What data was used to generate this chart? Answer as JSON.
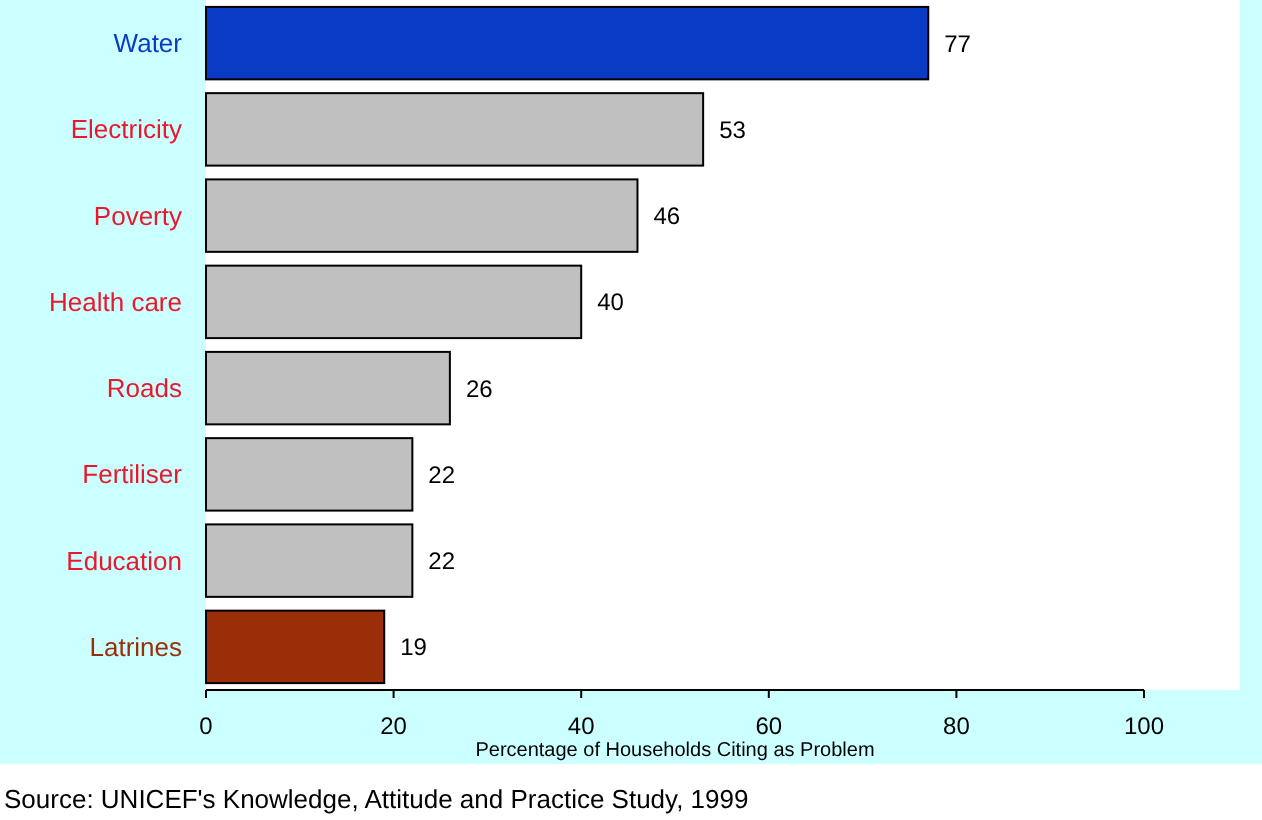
{
  "chart_data": {
    "type": "bar",
    "orientation": "horizontal",
    "categories": [
      "Water",
      "Electricity",
      "Poverty",
      "Health care",
      "Roads",
      "Fertiliser",
      "Education",
      "Latrines"
    ],
    "values": [
      77,
      53,
      46,
      40,
      26,
      22,
      22,
      19
    ],
    "colors": [
      "#0a3bc4",
      "#c0c0c0",
      "#c0c0c0",
      "#c0c0c0",
      "#c0c0c0",
      "#c0c0c0",
      "#c0c0c0",
      "#9a2e08"
    ],
    "data_labels": true,
    "xlabel": "Percentage of Households Citing as Problem",
    "xlim": [
      0,
      100
    ],
    "xticks": [
      0,
      20,
      40,
      60,
      80,
      100
    ],
    "annotations": [
      "Source: UNICEF's Knowledge, Attitude and Practice Study, 1999"
    ]
  }
}
